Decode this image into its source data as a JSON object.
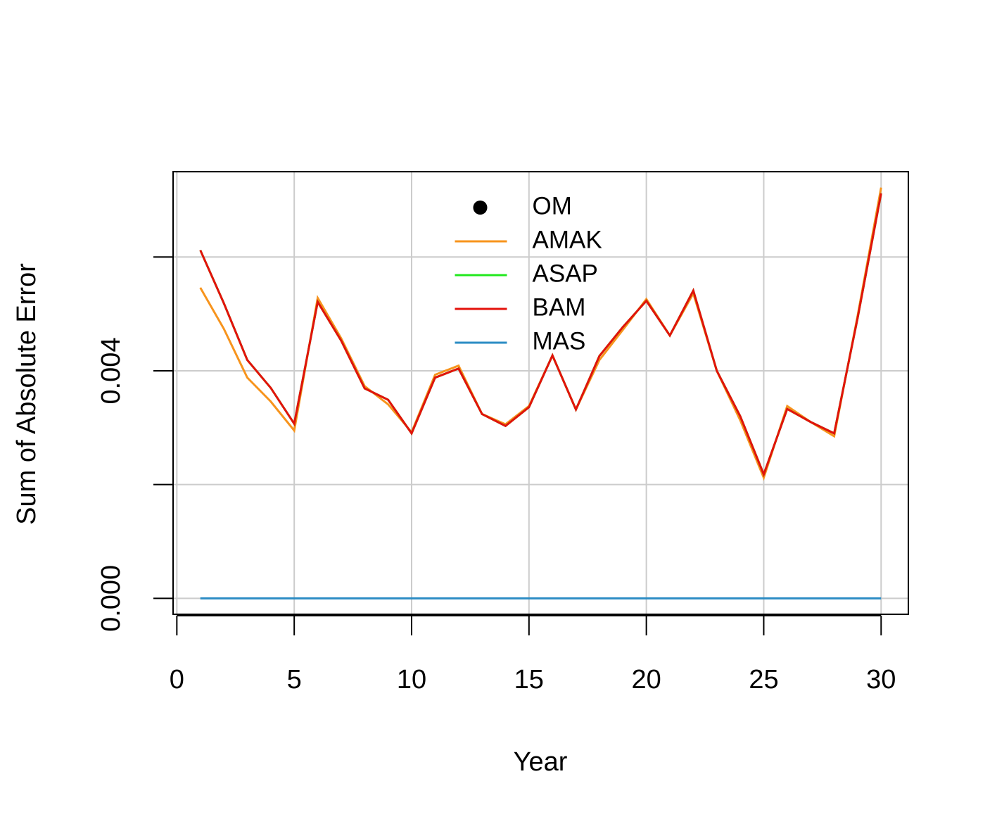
{
  "chart_data": {
    "type": "line",
    "xlabel": "Year",
    "ylabel": "Sum of Absolute Error",
    "x": [
      1,
      2,
      3,
      4,
      5,
      6,
      7,
      8,
      9,
      10,
      11,
      12,
      13,
      14,
      15,
      16,
      17,
      18,
      19,
      20,
      21,
      22,
      23,
      24,
      25,
      26,
      27,
      28,
      29,
      30
    ],
    "series": [
      {
        "name": "OM",
        "color": "#000000",
        "marker": "point",
        "values": [
          null,
          null,
          null,
          null,
          null,
          null,
          null,
          null,
          null,
          null,
          null,
          null,
          null,
          null,
          null,
          null,
          null,
          null,
          null,
          null,
          null,
          null,
          null,
          null,
          null,
          null,
          null,
          null,
          null,
          null
        ]
      },
      {
        "name": "AMAK",
        "color": "#f7941d",
        "values": [
          0.00546,
          0.00474,
          0.00388,
          0.00346,
          0.00295,
          0.00528,
          0.00457,
          0.00373,
          0.00341,
          0.00292,
          0.00393,
          0.00409,
          0.00324,
          0.00306,
          0.00338,
          0.00427,
          0.00332,
          0.00419,
          0.00472,
          0.00526,
          0.00462,
          0.00536,
          0.004,
          0.00313,
          0.00212,
          0.00338,
          0.0031,
          0.00285,
          0.00497,
          0.00722
        ]
      },
      {
        "name": "ASAP",
        "color": "#22e81e",
        "values": [
          0.00612,
          0.00519,
          0.00419,
          0.0037,
          0.00307,
          0.00521,
          0.00453,
          0.00369,
          0.00349,
          0.0029,
          0.00388,
          0.00404,
          0.00324,
          0.00303,
          0.00336,
          0.00427,
          0.00332,
          0.00426,
          0.00477,
          0.00523,
          0.00462,
          0.00541,
          0.004,
          0.0032,
          0.00218,
          0.00333,
          0.0031,
          0.0029,
          0.00493,
          0.00712
        ]
      },
      {
        "name": "BAM",
        "color": "#e3120b",
        "values": [
          0.00612,
          0.00519,
          0.00419,
          0.0037,
          0.00307,
          0.00521,
          0.00453,
          0.00369,
          0.00349,
          0.0029,
          0.00388,
          0.00404,
          0.00324,
          0.00303,
          0.00336,
          0.00427,
          0.00332,
          0.00426,
          0.00477,
          0.00523,
          0.00462,
          0.00541,
          0.004,
          0.0032,
          0.00218,
          0.00333,
          0.0031,
          0.0029,
          0.00493,
          0.00712
        ]
      },
      {
        "name": "MAS",
        "color": "#2b8cc4",
        "values": [
          0,
          0,
          0,
          0,
          0,
          0,
          0,
          0,
          0,
          0,
          0,
          0,
          0,
          0,
          0,
          0,
          0,
          0,
          0,
          0,
          0,
          0,
          0,
          0,
          0,
          0,
          0,
          0,
          0,
          0
        ]
      }
    ],
    "xlim": [
      -0.16,
      31.16
    ],
    "ylim": [
      -0.00028,
      0.0075
    ],
    "xticks": [
      0,
      5,
      10,
      15,
      20,
      25,
      30
    ],
    "yticks": [
      {
        "value": 0,
        "label": "0.000"
      },
      {
        "value": 0.004,
        "label": "0.004"
      }
    ],
    "yticks_unlabeled": [
      0.002,
      0.006
    ],
    "grid": true,
    "legend": "top"
  }
}
